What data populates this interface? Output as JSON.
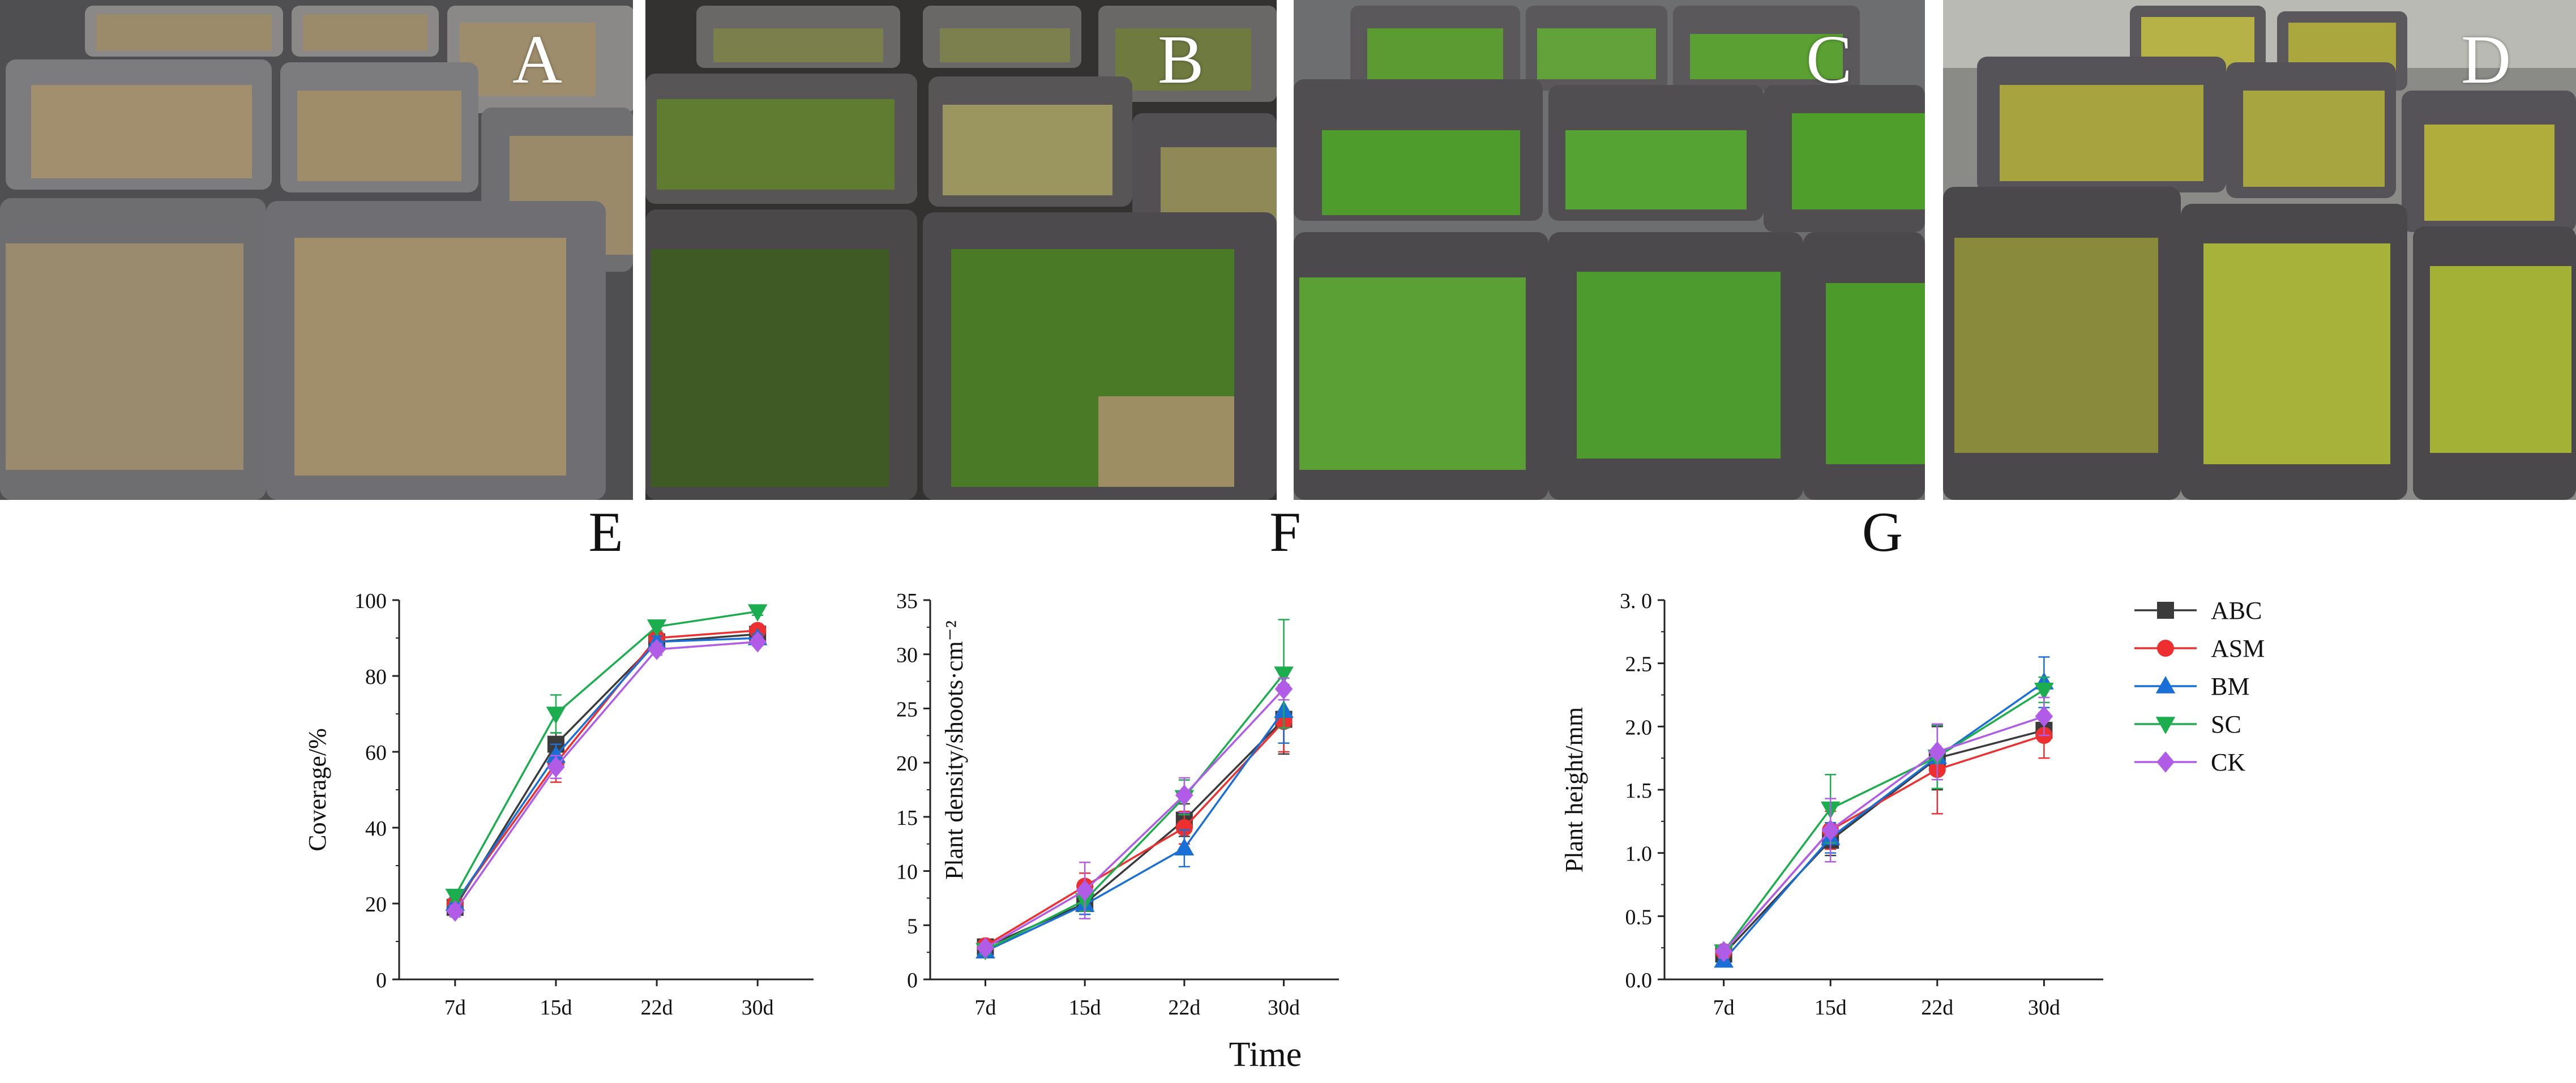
{
  "panels": [
    {
      "letter": "A",
      "description": "bare soil trays"
    },
    {
      "letter": "B",
      "description": "early moss growth"
    },
    {
      "letter": "C",
      "description": "green moss cover"
    },
    {
      "letter": "D",
      "description": "mature yellow-green moss cover"
    }
  ],
  "shared_xlabel": "Time",
  "legend": [
    "ABC",
    "ASM",
    "BM",
    "SC",
    "CK"
  ],
  "series_styles": [
    {
      "name": "ABC",
      "color": "#3b3b3b",
      "marker": "square"
    },
    {
      "name": "ASM",
      "color": "#ee2f2f",
      "marker": "circle"
    },
    {
      "name": "BM",
      "color": "#1a6fd6",
      "marker": "triangle-up"
    },
    {
      "name": "SC",
      "color": "#1cae4e",
      "marker": "triangle-down"
    },
    {
      "name": "CK",
      "color": "#b15ce6",
      "marker": "diamond"
    }
  ],
  "chart_data": [
    {
      "type": "line",
      "title": "E",
      "ylabel": "Coverage/%",
      "categories": [
        "7d",
        "15d",
        "22d",
        "30d"
      ],
      "ylim": [
        0,
        100
      ],
      "yticks": [
        "0",
        "20",
        "40",
        "60",
        "80",
        "100"
      ],
      "series": [
        {
          "name": "ABC",
          "values": [
            19,
            62,
            89,
            91
          ],
          "err": [
            1.5,
            3,
            1.5,
            1
          ]
        },
        {
          "name": "ASM",
          "values": [
            20,
            57,
            90,
            92
          ],
          "err": [
            1.5,
            5,
            1.5,
            1
          ]
        },
        {
          "name": "BM",
          "values": [
            20,
            59,
            89,
            90
          ],
          "err": [
            1.5,
            3,
            1.5,
            1
          ]
        },
        {
          "name": "SC",
          "values": [
            22,
            70,
            93,
            97
          ],
          "err": [
            1.5,
            5,
            1,
            1
          ]
        },
        {
          "name": "CK",
          "values": [
            18,
            56,
            87,
            89
          ],
          "err": [
            1.5,
            3,
            1.5,
            1
          ]
        }
      ]
    },
    {
      "type": "line",
      "title": "F",
      "ylabel": "Plant density/shoots·cm⁻²",
      "categories": [
        "7d",
        "15d",
        "22d",
        "30d"
      ],
      "ylim": [
        0,
        35
      ],
      "yticks": [
        "0",
        "5",
        "10",
        "15",
        "20",
        "25",
        "30",
        "35"
      ],
      "series": [
        {
          "name": "ABC",
          "values": [
            3.0,
            7.0,
            14.7,
            24.0
          ],
          "err": [
            0.4,
            1.0,
            1.5,
            3.2
          ]
        },
        {
          "name": "ASM",
          "values": [
            3.1,
            8.6,
            14.0,
            23.8
          ],
          "err": [
            0.4,
            1.2,
            1.5,
            2.8
          ]
        },
        {
          "name": "BM",
          "values": [
            2.6,
            6.9,
            12.1,
            24.8
          ],
          "err": [
            0.4,
            0.9,
            1.7,
            3.0
          ]
        },
        {
          "name": "SC",
          "values": [
            2.7,
            7.3,
            16.8,
            28.2
          ],
          "err": [
            0.4,
            1.0,
            1.6,
            5.0
          ]
        },
        {
          "name": "CK",
          "values": [
            2.9,
            8.2,
            17.0,
            26.8
          ],
          "err": [
            0.4,
            2.6,
            1.6,
            1.0
          ]
        }
      ]
    },
    {
      "type": "line",
      "title": "G",
      "ylabel": "Plant height/mm",
      "categories": [
        "7d",
        "15d",
        "22d",
        "30d"
      ],
      "ylim": [
        0,
        3.0
      ],
      "yticks": [
        "0.0",
        "0.5",
        "1.0",
        "1.5",
        "2.0",
        "2.5",
        "3. 0"
      ],
      "series": [
        {
          "name": "ABC",
          "values": [
            0.2,
            1.1,
            1.75,
            1.97
          ],
          "err": [
            0.05,
            0.12,
            0.25,
            0.08
          ]
        },
        {
          "name": "ASM",
          "values": [
            0.22,
            1.18,
            1.66,
            1.93
          ],
          "err": [
            0.05,
            0.15,
            0.35,
            0.18
          ]
        },
        {
          "name": "BM",
          "values": [
            0.15,
            1.12,
            1.76,
            2.35
          ],
          "err": [
            0.05,
            0.12,
            0.25,
            0.2
          ]
        },
        {
          "name": "SC",
          "values": [
            0.22,
            1.35,
            1.76,
            2.29
          ],
          "err": [
            0.05,
            0.27,
            0.25,
            0.1
          ]
        },
        {
          "name": "CK",
          "values": [
            0.22,
            1.18,
            1.8,
            2.08
          ],
          "err": [
            0.05,
            0.25,
            0.22,
            0.15
          ]
        }
      ]
    }
  ]
}
